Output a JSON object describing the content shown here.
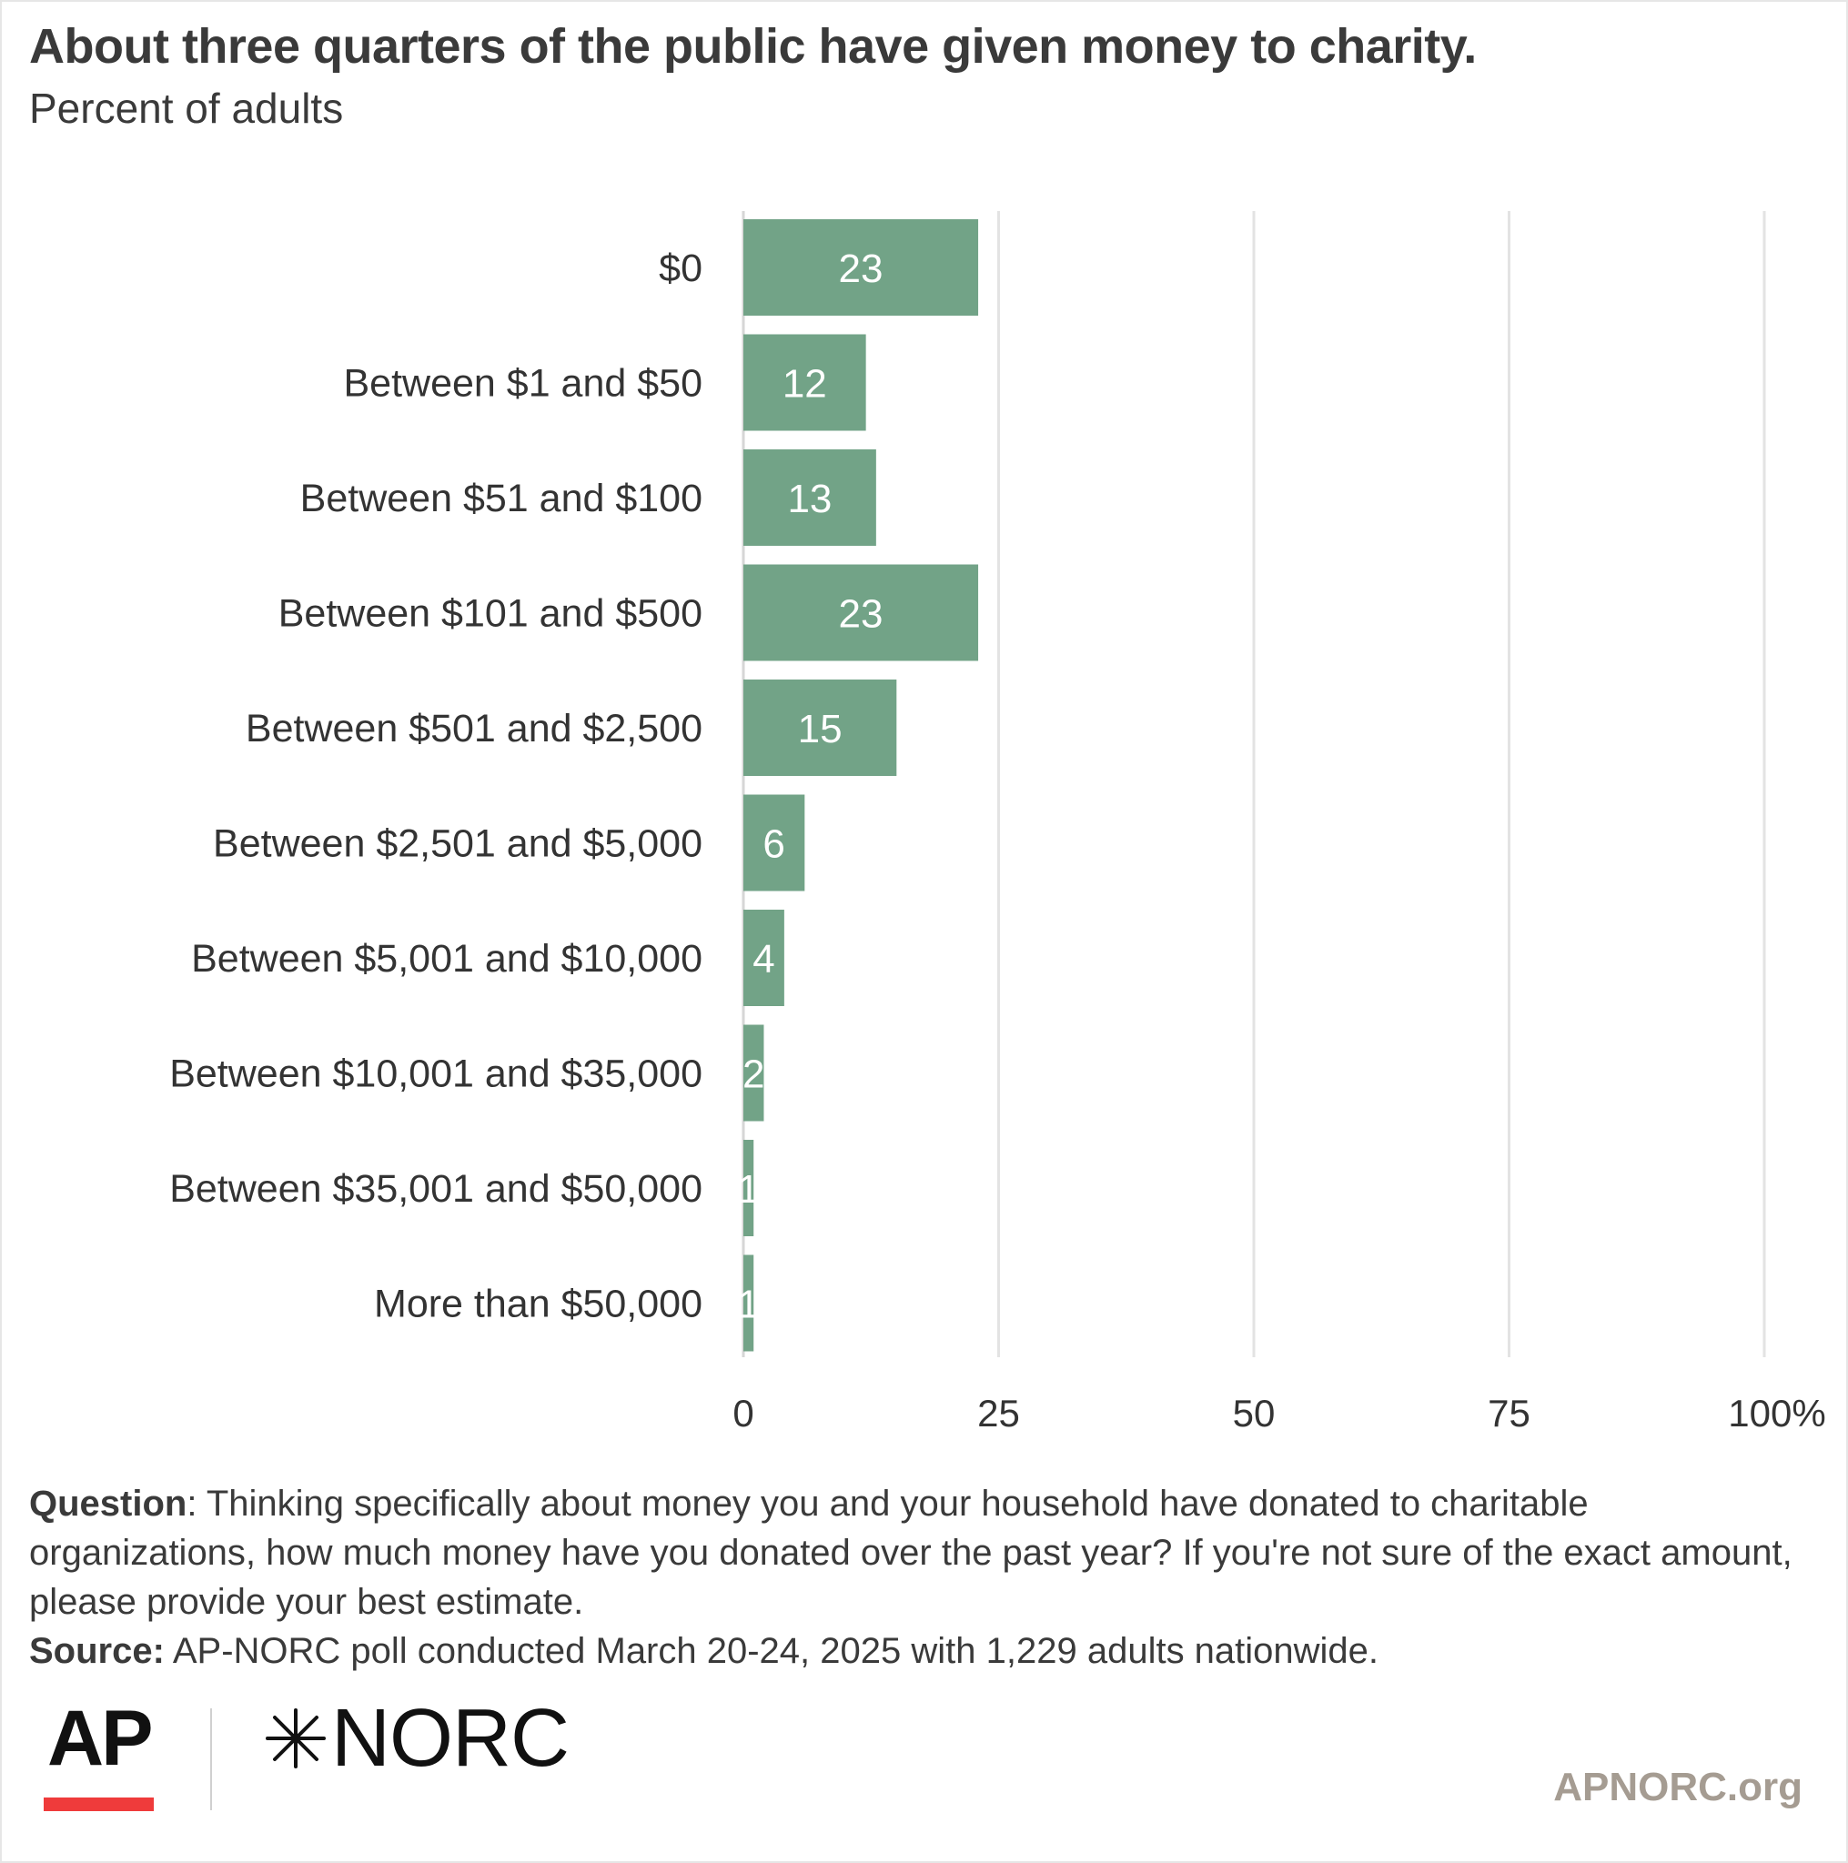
{
  "header": {
    "title": "About three quarters of the public have given money to charity.",
    "subtitle": "Percent of adults"
  },
  "chart_data": {
    "type": "bar",
    "orientation": "horizontal",
    "categories": [
      "$0",
      "Between $1 and $50",
      "Between $51 and $100",
      "Between $101 and $500",
      "Between $501 and $2,500",
      "Between $2,501 and $5,000",
      "Between $5,001 and $10,000",
      "Between $10,001 and $35,000",
      "Between $35,001 and $50,000",
      "More than $50,000"
    ],
    "values": [
      23,
      12,
      13,
      23,
      15,
      6,
      4,
      2,
      1,
      1
    ],
    "xlim": [
      0,
      100
    ],
    "x_ticks": [
      "0",
      "25",
      "50",
      "75",
      "100%"
    ],
    "grid": true,
    "bar_color": "#72a387",
    "label_color": "#ffffff"
  },
  "footer": {
    "question_label": "Question",
    "question_text": ": Thinking specifically about money you and your household have donated to charitable organizations, how much money have you donated over the past year? If you're not sure of the exact amount, please provide your best estimate.",
    "source_label": "Source:",
    "source_text": " AP-NORC poll conducted March 20-24, 2025 with 1,229 adults nationwide.",
    "logo_ap": "AP",
    "logo_norc": "NORC",
    "site": "APNORC.org"
  }
}
